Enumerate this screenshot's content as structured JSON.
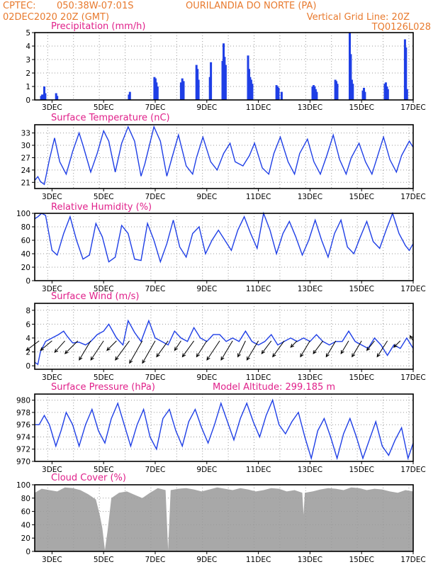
{
  "header": {
    "source": "CPTEC:",
    "coords": "050:38W-07:01S",
    "location": "OURILANDIA DO NORTE (PA)",
    "run": "02DEC2020 20Z (GMT)",
    "grid_note": "Vertical Grid Line: 20Z",
    "model": "TQ0126L028"
  },
  "colors": {
    "header_text": "#e87a2e",
    "panel_title": "#e0208a",
    "series_line": "#1f3fe6",
    "precip_bar": "#1f3fe6",
    "cloud_fill": "#a8a8a8",
    "grid": "#9a9a9a"
  },
  "x_axis": {
    "day_labels": [
      "3DEC",
      "5DEC",
      "7DEC",
      "9DEC",
      "11DEC",
      "13DEC",
      "15DEC",
      "17DEC"
    ],
    "day_positions": [
      3,
      5,
      7,
      9,
      11,
      13,
      15,
      17
    ],
    "range": [
      2.33,
      17.0
    ],
    "vertical_grid": "20Z daily"
  },
  "chart_data": [
    {
      "type": "bar",
      "title": "Precipitation (mm/h)",
      "ylim": [
        0,
        5
      ],
      "yticks": [
        0,
        1,
        2,
        3,
        4,
        5
      ],
      "x": [
        2.58,
        2.62,
        2.66,
        2.7,
        2.74,
        3.16,
        3.2,
        5.98,
        6.02,
        6.97,
        7.01,
        7.05,
        7.09,
        8.0,
        8.05,
        8.1,
        8.6,
        8.64,
        8.68,
        9.12,
        9.16,
        9.61,
        9.65,
        9.69,
        9.73,
        10.6,
        10.64,
        10.68,
        10.72,
        10.76,
        11.7,
        11.74,
        11.78,
        11.9,
        13.1,
        13.14,
        13.18,
        13.22,
        13.26,
        13.98,
        14.02,
        14.06,
        14.54,
        14.58,
        14.62,
        14.66,
        15.05,
        15.09,
        15.13,
        15.9,
        15.94,
        15.98,
        16.02,
        16.68,
        16.72,
        16.76
      ],
      "values": [
        0.3,
        0.4,
        0.4,
        1.0,
        0.5,
        0.5,
        0.3,
        0.4,
        0.6,
        1.7,
        1.6,
        1.3,
        1.0,
        1.3,
        1.6,
        1.4,
        2.6,
        2.3,
        1.5,
        1.7,
        2.8,
        2.9,
        4.2,
        3.2,
        2.6,
        3.3,
        2.3,
        1.7,
        1.5,
        1.2,
        1.1,
        1.0,
        0.9,
        0.6,
        1.0,
        1.1,
        1.0,
        0.8,
        0.6,
        1.5,
        1.4,
        1.2,
        5.0,
        3.4,
        1.5,
        1.2,
        0.7,
        0.9,
        0.6,
        1.2,
        1.3,
        1.0,
        0.8,
        4.5,
        3.9,
        0.8
      ]
    },
    {
      "type": "line",
      "title": "Surface Temperature (nC)",
      "ylim": [
        19.5,
        35
      ],
      "yticks": [
        21,
        24,
        27,
        30,
        33
      ],
      "series": [
        {
          "x": [
            2.33,
            2.45,
            2.55,
            2.7,
            2.9,
            3.1,
            3.3,
            3.55,
            3.8,
            4.05,
            4.2,
            4.5,
            4.75,
            5.0,
            5.2,
            5.45,
            5.7,
            5.95,
            6.2,
            6.45,
            6.6,
            6.95,
            7.2,
            7.45,
            7.65,
            7.9,
            8.2,
            8.45,
            8.6,
            8.85,
            9.15,
            9.4,
            9.65,
            9.9,
            10.1,
            10.4,
            10.65,
            10.85,
            11.15,
            11.4,
            11.6,
            11.85,
            12.15,
            12.4,
            12.6,
            12.9,
            13.15,
            13.4,
            13.65,
            13.9,
            14.15,
            14.4,
            14.6,
            14.9,
            15.15,
            15.4,
            15.65,
            15.85,
            16.1,
            16.35,
            16.55,
            16.85,
            17.0
          ],
          "y": [
            21.5,
            22.4,
            21.2,
            20.5,
            26.5,
            31.8,
            26.0,
            23.0,
            28.5,
            33.0,
            30.0,
            23.5,
            28.0,
            33.5,
            31.0,
            23.5,
            30.5,
            34.5,
            31.0,
            22.5,
            25.5,
            34.5,
            31.0,
            22.5,
            27.0,
            32.5,
            25.0,
            23.0,
            27.0,
            32.0,
            26.0,
            24.0,
            28.0,
            30.5,
            26.0,
            25.0,
            27.5,
            30.5,
            24.5,
            23.0,
            28.0,
            32.0,
            26.0,
            23.0,
            28.0,
            31.5,
            26.0,
            23.0,
            27.5,
            32.5,
            26.5,
            23.0,
            27.0,
            30.5,
            26.0,
            23.0,
            28.0,
            32.0,
            26.5,
            23.5,
            27.5,
            31.0,
            29.5
          ]
        }
      ]
    },
    {
      "type": "line",
      "title": "Relative Humidity (%)",
      "ylim": [
        0,
        100
      ],
      "yticks": [
        0,
        20,
        40,
        60,
        80,
        100
      ],
      "series": [
        {
          "x": [
            2.33,
            2.45,
            2.6,
            2.75,
            3.0,
            3.2,
            3.45,
            3.7,
            3.95,
            4.2,
            4.45,
            4.7,
            4.95,
            5.2,
            5.45,
            5.7,
            5.95,
            6.2,
            6.45,
            6.7,
            6.95,
            7.2,
            7.45,
            7.7,
            7.95,
            8.2,
            8.45,
            8.7,
            8.95,
            9.2,
            9.45,
            9.7,
            9.95,
            10.2,
            10.45,
            10.7,
            10.95,
            11.2,
            11.45,
            11.7,
            11.95,
            12.2,
            12.45,
            12.7,
            12.95,
            13.2,
            13.45,
            13.7,
            13.95,
            14.2,
            14.45,
            14.7,
            14.95,
            15.2,
            15.45,
            15.7,
            15.95,
            16.2,
            16.45,
            16.7,
            16.85,
            17.0
          ],
          "y": [
            92,
            95,
            100,
            97,
            45,
            38,
            70,
            95,
            60,
            32,
            38,
            85,
            65,
            28,
            35,
            82,
            70,
            32,
            30,
            85,
            60,
            28,
            55,
            90,
            50,
            35,
            70,
            80,
            40,
            60,
            75,
            60,
            45,
            75,
            95,
            70,
            48,
            100,
            75,
            40,
            70,
            88,
            65,
            38,
            60,
            90,
            60,
            35,
            70,
            90,
            50,
            40,
            65,
            88,
            58,
            48,
            75,
            100,
            70,
            52,
            45,
            55
          ]
        }
      ]
    },
    {
      "type": "line",
      "title": "Surface Wind (m/s)",
      "ylim": [
        -0.5,
        9
      ],
      "yticks": [
        0,
        2,
        4,
        6,
        8
      ],
      "series": [
        {
          "x": [
            2.33,
            2.45,
            2.55,
            2.75,
            3.0,
            3.25,
            3.45,
            3.6,
            3.8,
            4.05,
            4.3,
            4.5,
            4.75,
            5.0,
            5.2,
            5.5,
            5.75,
            5.95,
            6.2,
            6.45,
            6.75,
            7.0,
            7.25,
            7.5,
            7.75,
            8.0,
            8.25,
            8.5,
            8.75,
            9.0,
            9.25,
            9.5,
            9.75,
            10.0,
            10.25,
            10.5,
            10.75,
            11.0,
            11.25,
            11.5,
            11.75,
            12.0,
            12.25,
            12.5,
            12.75,
            13.0,
            13.25,
            13.5,
            13.75,
            14.0,
            14.25,
            14.5,
            14.75,
            15.0,
            15.25,
            15.5,
            15.75,
            16.0,
            16.25,
            16.5,
            16.75,
            17.0
          ],
          "y": [
            0.5,
            0.2,
            2.0,
            3.5,
            4.0,
            4.5,
            5.0,
            4.2,
            3.3,
            3.4,
            3.0,
            3.5,
            4.5,
            5.0,
            6.0,
            4.0,
            3.0,
            6.5,
            4.8,
            3.5,
            6.5,
            4.0,
            3.5,
            3.0,
            5.0,
            4.0,
            3.5,
            5.5,
            4.0,
            3.5,
            4.5,
            4.5,
            3.5,
            4.0,
            3.5,
            5.0,
            3.5,
            3.0,
            3.5,
            4.5,
            3.0,
            3.5,
            4.0,
            3.5,
            4.0,
            3.5,
            4.5,
            3.5,
            3.0,
            3.5,
            3.5,
            5.0,
            3.5,
            3.0,
            2.5,
            4.0,
            3.0,
            1.5,
            3.0,
            2.5,
            4.0,
            2.5
          ]
        }
      ],
      "wind_vectors": {
        "x": [
          2.5,
          3.0,
          3.5,
          4.0,
          4.5,
          5.0,
          5.5,
          6.0,
          6.5,
          7.0,
          7.5,
          8.0,
          8.5,
          9.0,
          9.5,
          10.0,
          10.5,
          11.0,
          11.5,
          12.0,
          12.5,
          13.0,
          13.5,
          14.0,
          14.5,
          15.0,
          15.5,
          16.0,
          16.5,
          17.0
        ],
        "u": [
          -2.0,
          -1.8,
          -1.6,
          -2.0,
          -1.8,
          -2.0,
          -1.5,
          -2.2,
          -2.0,
          -2.0,
          -1.8,
          -1.0,
          -1.8,
          -1.6,
          -2.0,
          -1.8,
          -1.2,
          -1.8,
          -1.5,
          -1.8,
          -1.0,
          -1.5,
          -1.5,
          -1.5,
          -1.2,
          -1.5,
          -1.2,
          -1.6,
          -1.0,
          -0.5
        ],
        "v": [
          -1.5,
          -1.5,
          -1.8,
          -2.0,
          -3.0,
          -3.0,
          -1.5,
          -3.0,
          -3.5,
          -3.5,
          -2.5,
          -1.5,
          -2.5,
          -2.5,
          -3.0,
          -3.0,
          -2.5,
          -3.0,
          -2.0,
          -2.5,
          -1.0,
          -2.5,
          -2.0,
          -2.5,
          -2.0,
          -2.5,
          -1.5,
          -2.5,
          -1.0,
          0.8
        ]
      }
    },
    {
      "type": "line",
      "title": "Surface Pressure (hPa)",
      "annotation": "Model Altitude: 299.185 m",
      "ylim": [
        970,
        981
      ],
      "yticks": [
        970,
        972,
        974,
        976,
        978,
        980
      ],
      "series": [
        {
          "x": [
            2.33,
            2.5,
            2.7,
            2.9,
            3.15,
            3.35,
            3.55,
            3.8,
            4.05,
            4.3,
            4.55,
            4.8,
            5.05,
            5.3,
            5.55,
            5.8,
            6.05,
            6.3,
            6.55,
            6.8,
            7.05,
            7.3,
            7.55,
            7.8,
            8.05,
            8.3,
            8.55,
            8.8,
            9.05,
            9.3,
            9.55,
            9.8,
            10.05,
            10.3,
            10.55,
            10.8,
            11.05,
            11.3,
            11.55,
            11.8,
            12.05,
            12.3,
            12.55,
            12.8,
            13.05,
            13.3,
            13.55,
            13.8,
            14.05,
            14.3,
            14.55,
            14.8,
            15.05,
            15.3,
            15.55,
            15.8,
            16.05,
            16.3,
            16.55,
            16.8,
            17.0
          ],
          "y": [
            976.0,
            976.0,
            977.5,
            976.0,
            972.5,
            975.0,
            978.0,
            976.0,
            972.5,
            976.0,
            978.5,
            975.0,
            973.0,
            977.0,
            979.5,
            976.0,
            972.5,
            976.0,
            978.5,
            974.0,
            972.0,
            977.0,
            978.5,
            975.0,
            972.5,
            976.5,
            978.5,
            975.5,
            973.0,
            976.0,
            979.5,
            976.5,
            973.5,
            977.0,
            979.5,
            976.5,
            974.0,
            977.5,
            980.0,
            976.0,
            974.5,
            976.5,
            978.0,
            974.0,
            970.5,
            975.0,
            977.0,
            974.0,
            970.5,
            974.5,
            977.0,
            974.0,
            970.5,
            973.5,
            976.5,
            972.5,
            971.0,
            973.5,
            975.5,
            970.5,
            973.0
          ]
        }
      ]
    },
    {
      "type": "area",
      "title": "Cloud Cover (%)",
      "ylim": [
        0,
        100
      ],
      "yticks": [
        0,
        20,
        40,
        60,
        80,
        100
      ],
      "series": [
        {
          "x": [
            2.33,
            2.6,
            2.9,
            3.2,
            3.5,
            3.8,
            4.1,
            4.4,
            4.7,
            4.85,
            4.95,
            5.05,
            5.15,
            5.3,
            5.6,
            5.9,
            6.2,
            6.5,
            6.8,
            7.1,
            7.4,
            7.5,
            7.6,
            7.9,
            8.2,
            8.5,
            8.8,
            9.1,
            9.4,
            9.7,
            10.0,
            10.3,
            10.6,
            10.9,
            11.2,
            11.5,
            11.8,
            12.1,
            12.4,
            12.7,
            12.75,
            12.8,
            13.1,
            13.4,
            13.7,
            14.0,
            14.3,
            14.6,
            14.9,
            15.2,
            15.5,
            15.8,
            16.1,
            16.4,
            16.7,
            17.0
          ],
          "y": [
            88,
            94,
            92,
            90,
            96,
            95,
            92,
            86,
            78,
            55,
            35,
            2,
            30,
            80,
            88,
            90,
            85,
            80,
            88,
            95,
            92,
            2,
            92,
            94,
            95,
            93,
            90,
            93,
            96,
            94,
            92,
            95,
            93,
            90,
            92,
            95,
            94,
            90,
            92,
            88,
            55,
            88,
            90,
            93,
            95,
            94,
            92,
            96,
            95,
            92,
            94,
            93,
            90,
            88,
            92,
            90
          ]
        }
      ]
    }
  ]
}
